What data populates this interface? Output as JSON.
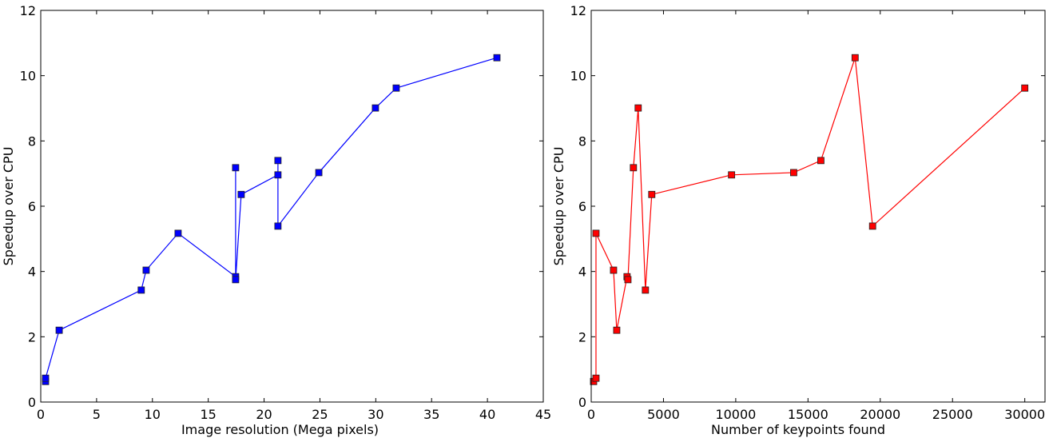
{
  "chart_data": [
    {
      "type": "line",
      "xlabel": "Image resolution (Mega pixels)",
      "ylabel": "Speedup over CPU",
      "xlim": [
        0,
        45
      ],
      "ylim": [
        0,
        12
      ],
      "xticks": [
        0,
        5,
        10,
        15,
        20,
        25,
        30,
        35,
        40,
        45
      ],
      "yticks": [
        0,
        2,
        4,
        6,
        8,
        10,
        12
      ],
      "grid": false,
      "color": "#0000ff",
      "marker": "square",
      "series": [
        {
          "x": [
            0.43,
            0.43,
            1.65,
            9.0,
            9.44,
            12.3,
            17.45,
            17.45,
            17.45,
            17.95,
            21.24,
            21.24,
            21.24,
            24.9,
            29.97,
            31.83,
            40.85
          ],
          "y": [
            0.63,
            0.73,
            2.2,
            3.43,
            4.04,
            5.17,
            3.84,
            7.18,
            3.75,
            6.36,
            6.96,
            7.4,
            5.39,
            7.03,
            9.01,
            9.62,
            10.55
          ]
        }
      ]
    },
    {
      "type": "line",
      "xlabel": "Number of keypoints found",
      "ylabel": "Speedup over CPU",
      "xlim": [
        0,
        31400
      ],
      "ylim": [
        0,
        12
      ],
      "xticks": [
        0,
        5000,
        10000,
        15000,
        20000,
        25000,
        30000
      ],
      "yticks": [
        0,
        2,
        4,
        6,
        8,
        10,
        12
      ],
      "grid": false,
      "color": "#ff0000",
      "marker": "square",
      "series": [
        {
          "x": [
            165,
            330,
            330,
            1545,
            1765,
            2480,
            2540,
            2920,
            3250,
            3750,
            4190,
            9710,
            14010,
            15890,
            18260,
            19470,
            30000
          ],
          "y": [
            0.63,
            0.73,
            5.17,
            4.04,
            2.2,
            3.84,
            3.75,
            7.18,
            9.01,
            3.43,
            6.36,
            6.96,
            7.03,
            7.4,
            10.55,
            5.39,
            9.62
          ]
        }
      ]
    }
  ]
}
